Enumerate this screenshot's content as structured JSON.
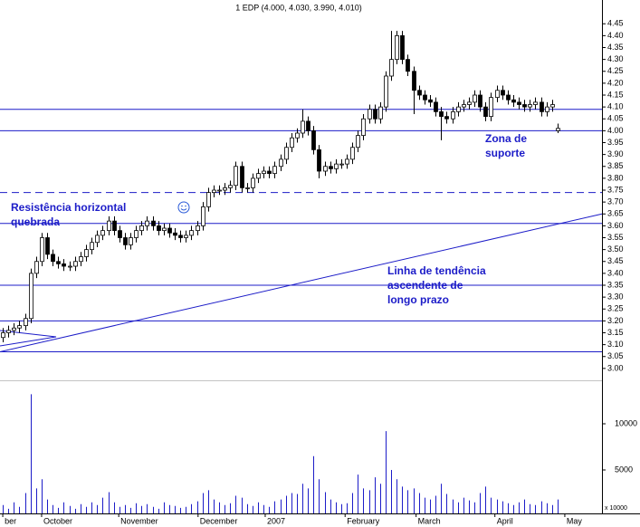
{
  "chart_data": {
    "type": "candlestick",
    "title": "1 EDP (4.000, 4.030, 3.990, 4.010)",
    "open": [
      3.13,
      3.15,
      3.16,
      3.17,
      3.18,
      3.21,
      3.4,
      3.45,
      3.55,
      3.48,
      3.45,
      3.44,
      3.43,
      3.43,
      3.45,
      3.47,
      3.5,
      3.53,
      3.56,
      3.58,
      3.62,
      3.58,
      3.55,
      3.52,
      3.55,
      3.58,
      3.6,
      3.62,
      3.6,
      3.58,
      3.59,
      3.57,
      3.56,
      3.55,
      3.56,
      3.58,
      3.6,
      3.68,
      3.74,
      3.75,
      3.75,
      3.76,
      3.77,
      3.85,
      3.76,
      3.76,
      3.8,
      3.82,
      3.83,
      3.82,
      3.85,
      3.88,
      3.93,
      3.97,
      3.99,
      4.04,
      4.0,
      3.92,
      3.83,
      3.85,
      3.84,
      3.86,
      3.86,
      3.88,
      3.93,
      3.98,
      4.05,
      4.09,
      4.05,
      4.1,
      4.23,
      4.3,
      4.4,
      4.3,
      4.25,
      4.17,
      4.15,
      4.13,
      4.12,
      4.08,
      4.06,
      4.05,
      4.08,
      4.1,
      4.11,
      4.12,
      4.15,
      4.1,
      4.06,
      4.14,
      4.17,
      4.15,
      4.13,
      4.12,
      4.11,
      4.1,
      4.11,
      4.12,
      4.08,
      4.1,
      4.0
    ],
    "high": [
      3.17,
      3.18,
      3.19,
      3.2,
      3.23,
      3.42,
      3.47,
      3.57,
      3.57,
      3.5,
      3.47,
      3.46,
      3.45,
      3.47,
      3.49,
      3.52,
      3.55,
      3.58,
      3.6,
      3.64,
      3.64,
      3.6,
      3.57,
      3.57,
      3.6,
      3.62,
      3.64,
      3.64,
      3.62,
      3.61,
      3.61,
      3.59,
      3.58,
      3.58,
      3.6,
      3.62,
      3.7,
      3.76,
      3.77,
      3.77,
      3.78,
      3.79,
      3.87,
      3.87,
      3.78,
      3.82,
      3.84,
      3.85,
      3.85,
      3.87,
      3.9,
      3.95,
      3.99,
      4.01,
      4.09,
      4.06,
      4.02,
      3.94,
      3.87,
      3.87,
      3.88,
      3.88,
      3.9,
      3.95,
      4.0,
      4.07,
      4.11,
      4.11,
      4.12,
      4.25,
      4.42,
      4.42,
      4.42,
      4.32,
      4.27,
      4.19,
      4.17,
      4.15,
      4.14,
      4.1,
      4.08,
      4.1,
      4.12,
      4.13,
      4.14,
      4.17,
      4.17,
      4.12,
      4.16,
      4.19,
      4.19,
      4.17,
      4.15,
      4.14,
      4.13,
      4.13,
      4.14,
      4.14,
      4.12,
      4.13,
      4.03
    ],
    "low": [
      3.11,
      3.13,
      3.14,
      3.15,
      3.16,
      3.19,
      3.38,
      3.43,
      3.46,
      3.43,
      3.42,
      3.41,
      3.41,
      3.41,
      3.43,
      3.45,
      3.48,
      3.51,
      3.54,
      3.56,
      3.56,
      3.53,
      3.5,
      3.5,
      3.53,
      3.56,
      3.58,
      3.58,
      3.56,
      3.56,
      3.55,
      3.54,
      3.53,
      3.53,
      3.54,
      3.56,
      3.58,
      3.66,
      3.72,
      3.73,
      3.73,
      3.74,
      3.75,
      3.74,
      3.74,
      3.74,
      3.78,
      3.8,
      3.8,
      3.8,
      3.83,
      3.86,
      3.91,
      3.95,
      3.97,
      3.98,
      3.9,
      3.8,
      3.81,
      3.82,
      3.82,
      3.84,
      3.84,
      3.86,
      3.91,
      3.96,
      4.03,
      4.03,
      4.03,
      4.08,
      4.21,
      4.28,
      4.28,
      4.23,
      4.07,
      4.13,
      4.11,
      4.1,
      4.06,
      3.96,
      4.03,
      4.03,
      4.06,
      4.08,
      4.09,
      4.1,
      4.08,
      4.04,
      4.04,
      4.12,
      4.13,
      4.11,
      4.1,
      4.09,
      4.08,
      4.08,
      4.09,
      4.06,
      4.06,
      4.08,
      3.99
    ],
    "close": [
      3.15,
      3.16,
      3.17,
      3.18,
      3.21,
      3.4,
      3.45,
      3.55,
      3.48,
      3.45,
      3.44,
      3.43,
      3.43,
      3.45,
      3.47,
      3.5,
      3.53,
      3.56,
      3.58,
      3.62,
      3.58,
      3.55,
      3.52,
      3.55,
      3.58,
      3.6,
      3.62,
      3.6,
      3.58,
      3.59,
      3.57,
      3.56,
      3.55,
      3.56,
      3.58,
      3.6,
      3.68,
      3.74,
      3.75,
      3.75,
      3.76,
      3.77,
      3.85,
      3.76,
      3.76,
      3.8,
      3.82,
      3.83,
      3.82,
      3.85,
      3.88,
      3.93,
      3.97,
      3.99,
      4.04,
      4.0,
      3.92,
      3.83,
      3.85,
      3.84,
      3.86,
      3.86,
      3.88,
      3.93,
      3.98,
      4.05,
      4.09,
      4.05,
      4.1,
      4.23,
      4.3,
      4.4,
      4.3,
      4.25,
      4.17,
      4.15,
      4.13,
      4.12,
      4.08,
      4.06,
      4.05,
      4.08,
      4.1,
      4.11,
      4.12,
      4.15,
      4.1,
      4.06,
      4.14,
      4.17,
      4.15,
      4.13,
      4.12,
      4.11,
      4.1,
      4.11,
      4.12,
      4.08,
      4.1,
      4.11,
      4.01
    ],
    "volume": [
      1200,
      800,
      1500,
      1000,
      2500,
      13200,
      3000,
      4000,
      1800,
      1200,
      900,
      1500,
      1100,
      800,
      1300,
      1000,
      1500,
      1200,
      2000,
      2600,
      1500,
      1000,
      1200,
      900,
      1400,
      1100,
      1300,
      1000,
      800,
      1500,
      1200,
      1100,
      900,
      1000,
      1300,
      1600,
      2500,
      2800,
      1800,
      1500,
      1200,
      1400,
      2200,
      2000,
      1300,
      1100,
      1500,
      1200,
      1000,
      1600,
      1800,
      2200,
      2500,
      2400,
      3500,
      3000,
      6500,
      4000,
      2600,
      1800,
      1500,
      1300,
      1400,
      2500,
      4500,
      3000,
      2800,
      4200,
      3500,
      9200,
      5000,
      4000,
      3200,
      2800,
      3000,
      2500,
      2000,
      1800,
      2200,
      3500,
      2400,
      1800,
      1500,
      2000,
      1700,
      1500,
      2500,
      3200,
      2000,
      1800,
      1600,
      1400,
      1200,
      1500,
      1800,
      1300,
      1200,
      1600,
      1400,
      1200,
      1800
    ],
    "xlim": [
      -0.5,
      108
    ],
    "xticks": [
      {
        "value": 0,
        "label": "ber"
      },
      {
        "value": 7,
        "label": "October"
      },
      {
        "value": 20.9,
        "label": "November"
      },
      {
        "value": 35.2,
        "label": "December"
      },
      {
        "value": 47.3,
        "label": "2007"
      },
      {
        "value": 61.7,
        "label": "February"
      },
      {
        "value": 74.5,
        "label": "March"
      },
      {
        "value": 88.7,
        "label": "April"
      },
      {
        "value": 101.3,
        "label": "May"
      }
    ],
    "ylim": [
      2.95,
      4.55
    ],
    "yticks": [
      {
        "value": 3,
        "label": "3.00"
      },
      {
        "value": 3.05,
        "label": "3.05"
      },
      {
        "value": 3.1,
        "label": "3.10"
      },
      {
        "value": 3.15,
        "label": "3.15"
      },
      {
        "value": 3.2,
        "label": "3.20"
      },
      {
        "value": 3.25,
        "label": "3.25"
      },
      {
        "value": 3.3,
        "label": "3.30"
      },
      {
        "value": 3.35,
        "label": "3.35"
      },
      {
        "value": 3.4,
        "label": "3.40"
      },
      {
        "value": 3.45,
        "label": "3.45"
      },
      {
        "value": 3.5,
        "label": "3.50"
      },
      {
        "value": 3.55,
        "label": "3.55"
      },
      {
        "value": 3.6,
        "label": "3.60"
      },
      {
        "value": 3.65,
        "label": "3.65"
      },
      {
        "value": 3.7,
        "label": "3.70"
      },
      {
        "value": 3.75,
        "label": "3.75"
      },
      {
        "value": 3.8,
        "label": "3.80"
      },
      {
        "value": 3.85,
        "label": "3.85"
      },
      {
        "value": 3.9,
        "label": "3.90"
      },
      {
        "value": 3.95,
        "label": "3.95"
      },
      {
        "value": 4,
        "label": "4.00"
      },
      {
        "value": 4.05,
        "label": "4.05"
      },
      {
        "value": 4.1,
        "label": "4.10"
      },
      {
        "value": 4.15,
        "label": "4.15"
      },
      {
        "value": 4.2,
        "label": "4.20"
      },
      {
        "value": 4.25,
        "label": "4.25"
      },
      {
        "value": 4.3,
        "label": "4.30"
      },
      {
        "value": 4.35,
        "label": "4.35"
      },
      {
        "value": 4.4,
        "label": "4.40"
      },
      {
        "value": 4.45,
        "label": "4.45"
      }
    ],
    "volume_ylim": [
      0,
      14900
    ],
    "volume_yticks": [
      5000,
      10000
    ],
    "volume_unit_label": "x 10000",
    "up_color": "#ffffff",
    "down_color": "#000000",
    "line_color": "#1c1cc8",
    "horizontal_lines": [
      4.09,
      4.0,
      3.61,
      3.35,
      3.2,
      3.07
    ],
    "dashed_line": 3.74,
    "trend_line": {
      "x": [
        -0.5,
        108
      ],
      "y": [
        3.07,
        3.65
      ]
    },
    "annotations": [
      {
        "lines": [
          "Resistência horizontal",
          "quebrada"
        ]
      },
      {
        "lines": [
          "Linha de tendência",
          "ascendente de",
          "longo prazo"
        ]
      },
      {
        "lines": [
          "Zona de",
          "suporte"
        ]
      }
    ]
  }
}
